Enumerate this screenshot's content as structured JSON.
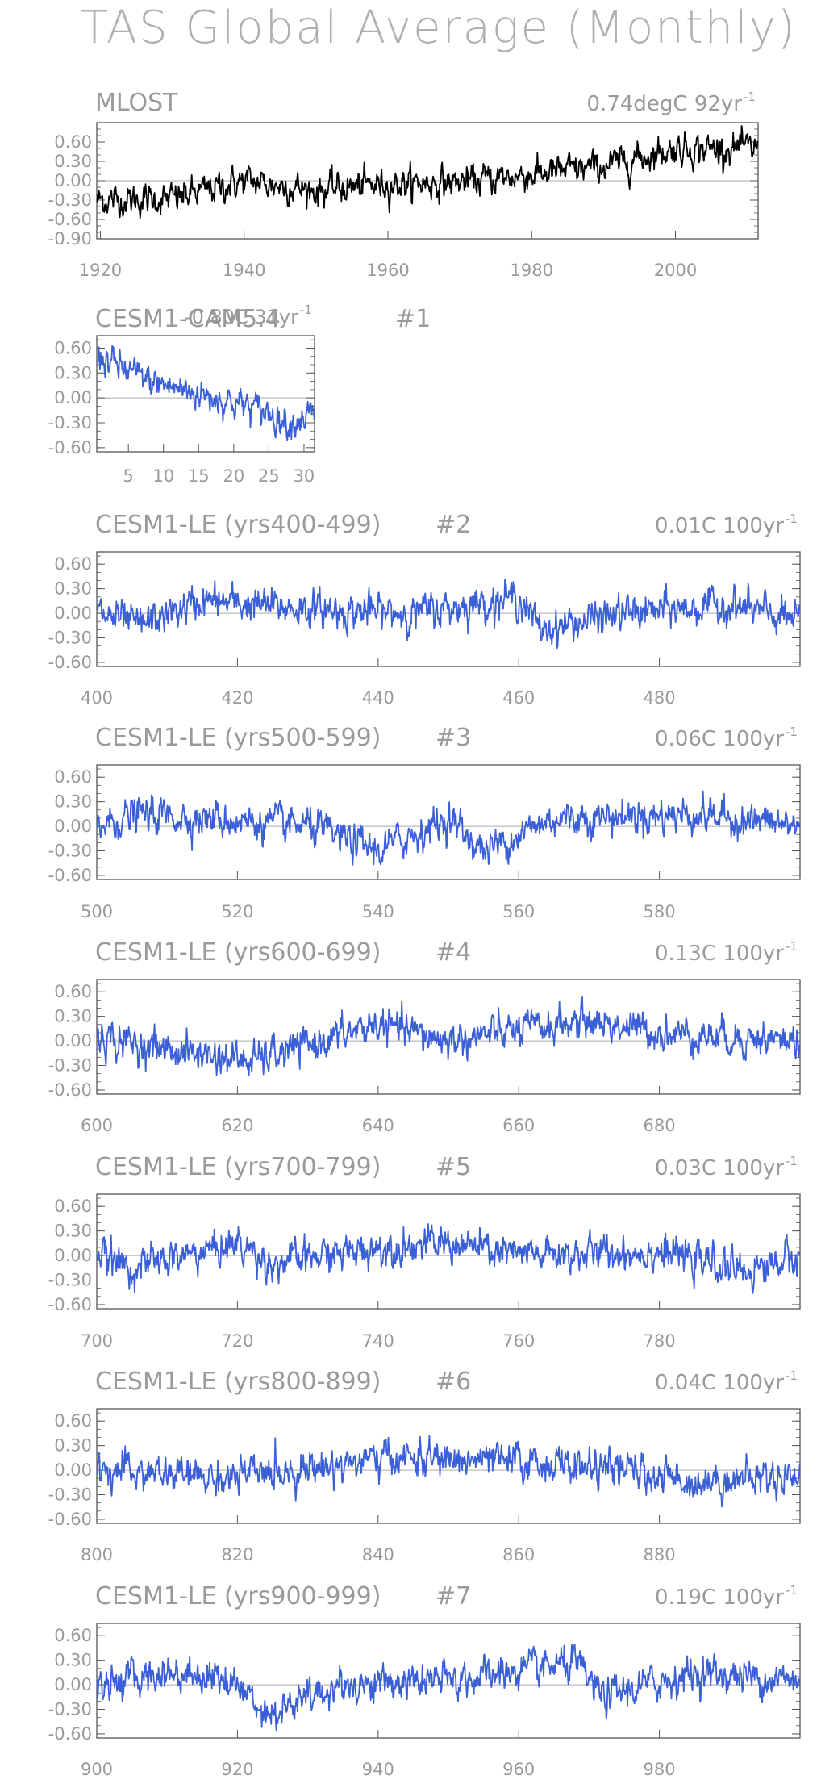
{
  "title": "TAS Global Average (Monthly)",
  "colors": {
    "observed": "#000000",
    "model": "#3a5fd6",
    "text": "#9a9a9a",
    "axis": "#555555",
    "zero_line": "#aaaaaa"
  },
  "chart_data": [
    {
      "type": "line",
      "title": "MLOST",
      "trend_label": "0.74degC 92yr",
      "trend_superscript": "-1",
      "xlim": [
        1919.5,
        2011.5
      ],
      "ylim": [
        -0.9,
        0.9
      ],
      "yticks": [
        "0.60",
        "0.30",
        "0.00",
        "-0.30",
        "-0.60",
        "-0.90"
      ],
      "xticks": [
        "1920",
        "1940",
        "1960",
        "1980",
        "2000"
      ],
      "series": [
        {
          "color": "#000000",
          "x": [
            1920,
            1930,
            1940,
            1950,
            1960,
            1970,
            1980,
            1990,
            2000,
            2010
          ],
          "y": [
            -0.3,
            -0.28,
            0.0,
            -0.15,
            -0.05,
            -0.02,
            0.1,
            0.22,
            0.5,
            0.5
          ],
          "monthly_noise_sd": 0.1
        }
      ]
    },
    {
      "type": "line",
      "title": "CESM1-CAM5.4",
      "trend_label": "-0.80C 31yr",
      "trend_superscript": "-1",
      "member": "#1",
      "xlim": [
        0.5,
        31.5
      ],
      "ylim": [
        -0.65,
        0.75
      ],
      "yticks": [
        "0.60",
        "0.30",
        "0.00",
        "-0.30",
        "-0.60"
      ],
      "xticks": [
        "5",
        "10",
        "15",
        "20",
        "25",
        "30"
      ],
      "series": [
        {
          "color": "#3a5fd6",
          "x": [
            1,
            3,
            8,
            15,
            20,
            24,
            28,
            31
          ],
          "y": [
            0.5,
            0.4,
            0.2,
            0.05,
            -0.05,
            -0.15,
            -0.3,
            -0.2
          ],
          "monthly_noise_sd": 0.08
        }
      ]
    },
    {
      "type": "line",
      "title": "CESM1-LE (yrs400-499)",
      "member": "#2",
      "trend_label": "0.01C 100yr",
      "trend_superscript": "-1",
      "xlim": [
        400,
        500
      ],
      "ylim": [
        -0.65,
        0.75
      ],
      "yticks": [
        "0.60",
        "0.30",
        "0.00",
        "-0.30",
        "-0.60"
      ],
      "xticks": [
        "400",
        "420",
        "440",
        "460",
        "480"
      ],
      "series": [
        {
          "color": "#3a5fd6",
          "x": [
            400,
            406,
            415,
            430,
            445,
            460,
            463,
            475,
            490,
            500
          ],
          "y": [
            0.0,
            -0.15,
            0.15,
            0.05,
            0.0,
            0.2,
            -0.2,
            0.0,
            0.1,
            -0.1
          ],
          "monthly_noise_sd": 0.09
        }
      ]
    },
    {
      "type": "line",
      "title": "CESM1-LE (yrs500-599)",
      "member": "#3",
      "trend_label": "0.06C 100yr",
      "trend_superscript": "-1",
      "xlim": [
        500,
        600
      ],
      "ylim": [
        -0.65,
        0.75
      ],
      "yticks": [
        "0.60",
        "0.30",
        "0.00",
        "-0.30",
        "-0.60"
      ],
      "xticks": [
        "500",
        "520",
        "540",
        "560",
        "580"
      ],
      "series": [
        {
          "color": "#3a5fd6",
          "x": [
            500,
            506,
            515,
            530,
            540,
            550,
            555,
            565,
            585,
            600
          ],
          "y": [
            0.0,
            0.15,
            0.1,
            0.0,
            -0.3,
            0.1,
            -0.3,
            0.1,
            0.15,
            0.0
          ],
          "monthly_noise_sd": 0.09
        }
      ]
    },
    {
      "type": "line",
      "title": "CESM1-LE (yrs600-699)",
      "member": "#4",
      "trend_label": "0.13C 100yr",
      "trend_superscript": "-1",
      "xlim": [
        600,
        700
      ],
      "ylim": [
        -0.65,
        0.75
      ],
      "yticks": [
        "0.60",
        "0.30",
        "0.00",
        "-0.30",
        "-0.60"
      ],
      "xticks": [
        "600",
        "620",
        "640",
        "660",
        "680"
      ],
      "series": [
        {
          "color": "#3a5fd6",
          "x": [
            600,
            610,
            622,
            640,
            650,
            670,
            680,
            700
          ],
          "y": [
            0.05,
            -0.1,
            -0.25,
            0.2,
            0.0,
            0.25,
            0.1,
            0.0
          ],
          "monthly_noise_sd": 0.09
        }
      ]
    },
    {
      "type": "line",
      "title": "CESM1-LE (yrs700-799)",
      "member": "#5",
      "trend_label": "0.03C 100yr",
      "trend_superscript": "-1",
      "xlim": [
        700,
        800
      ],
      "ylim": [
        -0.65,
        0.75
      ],
      "yticks": [
        "0.60",
        "0.30",
        "0.00",
        "-0.30",
        "-0.60"
      ],
      "xticks": [
        "700",
        "720",
        "740",
        "760",
        "780"
      ],
      "series": [
        {
          "color": "#3a5fd6",
          "x": [
            700,
            705,
            720,
            725,
            740,
            750,
            760,
            780,
            792,
            800
          ],
          "y": [
            0.0,
            -0.15,
            0.15,
            -0.1,
            0.1,
            0.15,
            0.0,
            0.05,
            -0.2,
            0.0
          ],
          "monthly_noise_sd": 0.09
        }
      ]
    },
    {
      "type": "line",
      "title": "CESM1-LE (yrs800-899)",
      "member": "#6",
      "trend_label": "0.04C 100yr",
      "trend_superscript": "-1",
      "xlim": [
        800,
        900
      ],
      "ylim": [
        -0.65,
        0.75
      ],
      "yticks": [
        "0.60",
        "0.30",
        "0.00",
        "-0.30",
        "-0.60"
      ],
      "xticks": [
        "800",
        "820",
        "840",
        "860",
        "880"
      ],
      "series": [
        {
          "color": "#3a5fd6",
          "x": [
            800,
            818,
            842,
            860,
            875,
            885,
            900
          ],
          "y": [
            0.0,
            -0.1,
            0.15,
            0.1,
            0.0,
            -0.15,
            -0.05
          ],
          "monthly_noise_sd": 0.09
        }
      ]
    },
    {
      "type": "line",
      "title": "CESM1-LE (yrs900-999)",
      "member": "#7",
      "trend_label": "0.19C 100yr",
      "trend_superscript": "-1",
      "xlim": [
        900,
        1000
      ],
      "ylim": [
        -0.65,
        0.75
      ],
      "yticks": [
        "0.60",
        "0.30",
        "0.00",
        "-0.30",
        "-0.60"
      ],
      "xticks": [
        "900",
        "920",
        "940",
        "960",
        "980"
      ],
      "series": [
        {
          "color": "#3a5fd6",
          "x": [
            900,
            910,
            918,
            925,
            935,
            950,
            968,
            972,
            985,
            1000
          ],
          "y": [
            0.0,
            0.15,
            0.1,
            -0.35,
            0.0,
            0.05,
            0.25,
            -0.15,
            0.15,
            0.05
          ],
          "monthly_noise_sd": 0.09
        }
      ]
    }
  ]
}
